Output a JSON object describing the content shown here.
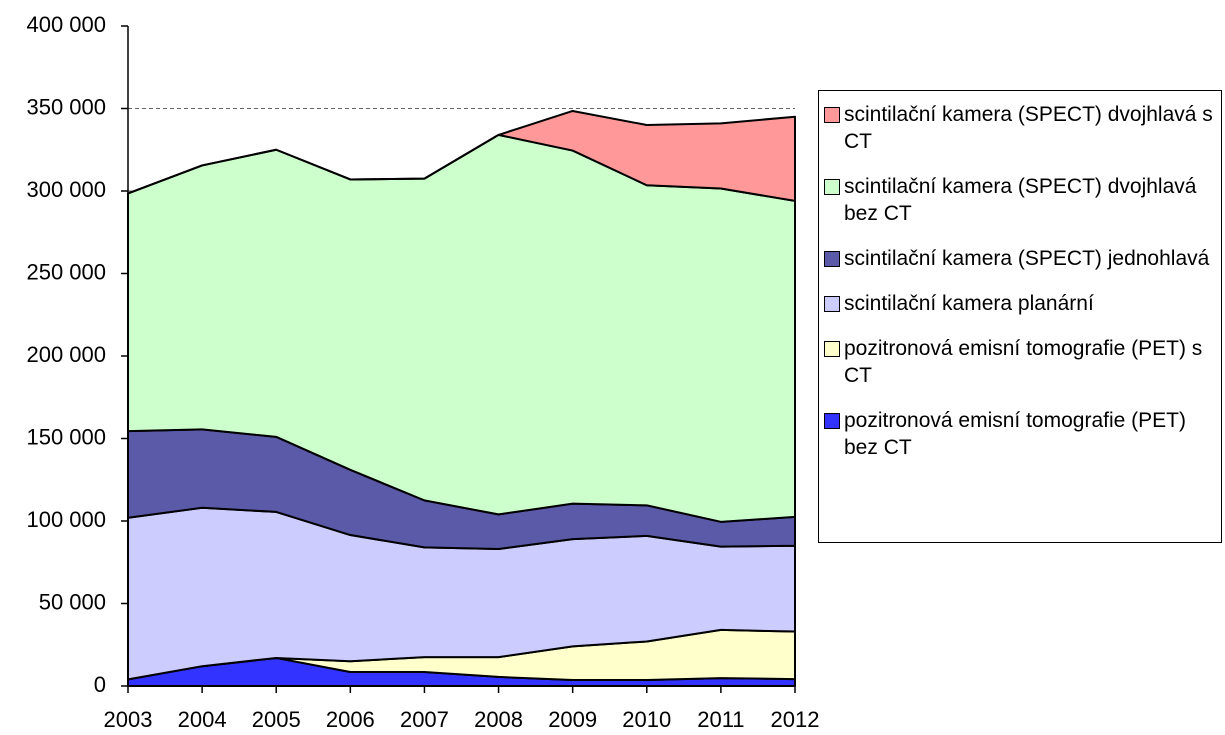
{
  "chart_data": {
    "type": "stacked_area",
    "categories": [
      "2003",
      "2004",
      "2005",
      "2006",
      "2007",
      "2008",
      "2009",
      "2010",
      "2011",
      "2012"
    ],
    "series": [
      {
        "name": "pozitronová emisní tomografie (PET) bez CT",
        "color": "#3333ff",
        "values": [
          4000,
          12000,
          17000,
          8500,
          8500,
          5500,
          3600,
          3600,
          4800,
          4200
        ]
      },
      {
        "name": "pozitronová emisní tomografie (PET) s CT",
        "color": "#ffffcc",
        "values": [
          0,
          0,
          0,
          6500,
          9000,
          12000,
          20400,
          23400,
          29200,
          28800
        ]
      },
      {
        "name": "scintilační kamera planární",
        "color": "#ccccff",
        "values": [
          98000,
          96000,
          88500,
          76500,
          66500,
          65500,
          65000,
          64000,
          50500,
          52000
        ]
      },
      {
        "name": "scintilační kamera (SPECT) jednohlavá",
        "color": "#5a5aa8",
        "values": [
          52500,
          47500,
          45500,
          39500,
          28500,
          21000,
          21500,
          18500,
          15000,
          17500
        ]
      },
      {
        "name": "scintilační kamera (SPECT) dvojhlavá bez CT",
        "color": "#ccffcc",
        "values": [
          144000,
          160000,
          174000,
          176000,
          195000,
          230000,
          214000,
          194000,
          202000,
          191500
        ]
      },
      {
        "name": "scintilační kamera (SPECT) dvojhlavá s CT",
        "color": "#ff9999",
        "values": [
          0,
          0,
          0,
          0,
          0,
          0,
          24000,
          36500,
          39500,
          51000
        ]
      }
    ],
    "ylim": [
      0,
      400000
    ],
    "yticks": [
      {
        "value": 0,
        "label": "0"
      },
      {
        "value": 50000,
        "label": "50 000"
      },
      {
        "value": 100000,
        "label": "100 000"
      },
      {
        "value": 150000,
        "label": "150 000"
      },
      {
        "value": 200000,
        "label": "200 000"
      },
      {
        "value": 250000,
        "label": "250 000"
      },
      {
        "value": 300000,
        "label": "300 000"
      },
      {
        "value": 350000,
        "label": "350 000"
      },
      {
        "value": 400000,
        "label": "400 000"
      }
    ],
    "grid": true,
    "legend": "right"
  }
}
